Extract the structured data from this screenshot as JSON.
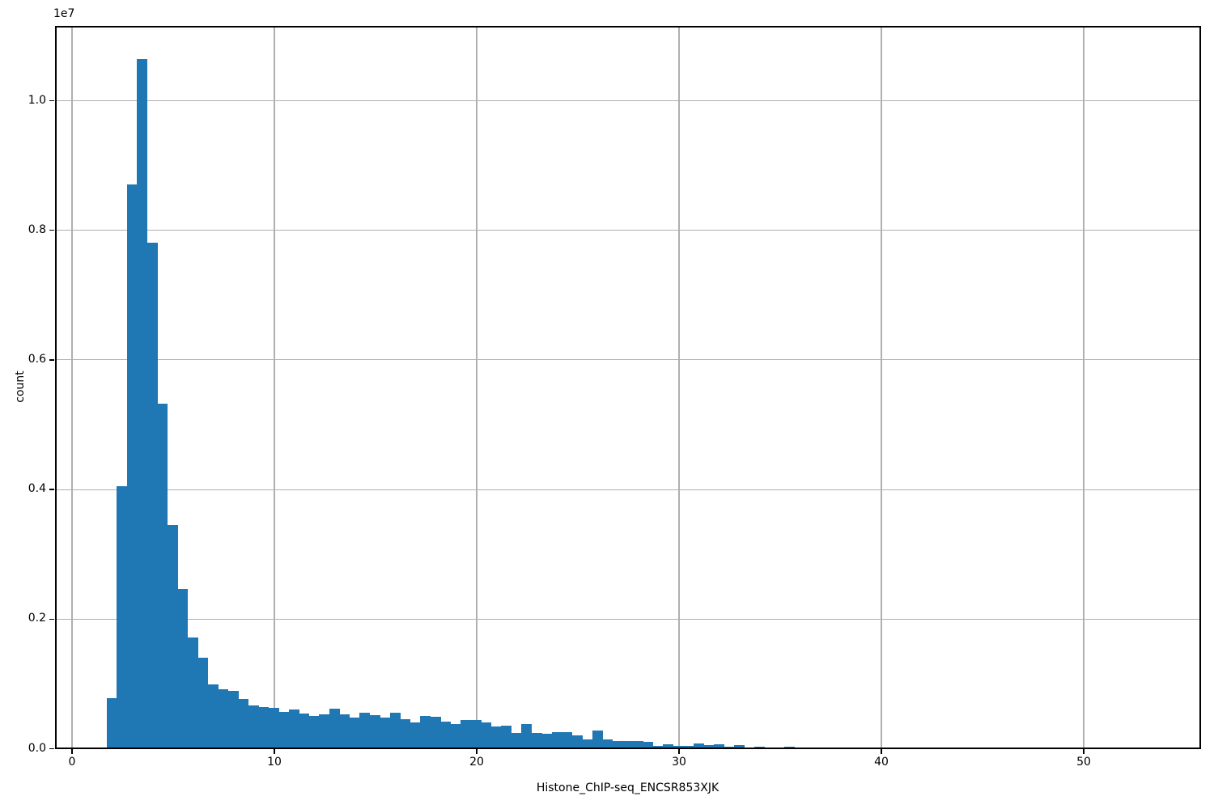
{
  "chart_data": {
    "type": "bar",
    "subtype": "histogram",
    "title": "",
    "xlabel": "Histone_ChIP-seq_ENCSR853XJK",
    "ylabel": "count",
    "y_offset_text": "1e7",
    "bar_color": "#1f77b4",
    "grid": true,
    "grid_color": "#b0b0b0",
    "legend_position": "none",
    "xlim": [
      -0.9,
      55.8
    ],
    "ylim": [
      0,
      11150000
    ],
    "x_ticks": [
      0,
      10,
      20,
      30,
      40,
      50
    ],
    "x_tick_labels": [
      "0",
      "10",
      "20",
      "30",
      "40",
      "50"
    ],
    "y_ticks": [
      0,
      2000000,
      4000000,
      6000000,
      8000000,
      10000000
    ],
    "y_tick_labels": [
      "0.0",
      "0.2",
      "0.4",
      "0.6",
      "0.8",
      "1.0"
    ],
    "bins": {
      "start": 1.71,
      "width": 0.5
    },
    "counts": [
      780000,
      4050000,
      8710000,
      10640000,
      7810000,
      5330000,
      3450000,
      2470000,
      1720000,
      1400000,
      990000,
      920000,
      890000,
      770000,
      670000,
      640000,
      630000,
      570000,
      610000,
      540000,
      510000,
      530000,
      620000,
      530000,
      480000,
      550000,
      520000,
      480000,
      550000,
      450000,
      410000,
      500000,
      490000,
      420000,
      380000,
      440000,
      440000,
      400000,
      340000,
      360000,
      240000,
      375000,
      240000,
      230000,
      250000,
      260000,
      200000,
      150000,
      280000,
      150000,
      120000,
      120000,
      120000,
      110000,
      50000,
      65000,
      45000,
      50000,
      85000,
      55000,
      65000,
      35000,
      55000,
      25000,
      30000,
      15000,
      8000,
      28000,
      5000
    ]
  }
}
